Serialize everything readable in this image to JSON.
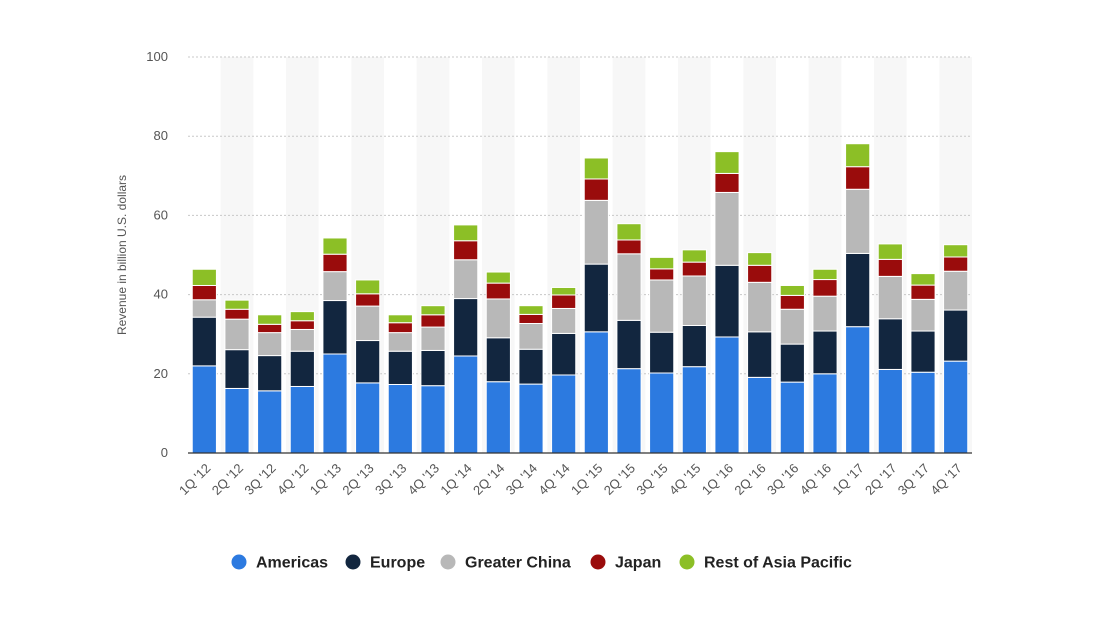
{
  "chart_data": {
    "type": "bar",
    "stacked": true,
    "categories": [
      "1Q '12",
      "2Q '12",
      "3Q '12",
      "4Q '12",
      "1Q '13",
      "2Q '13",
      "3Q '13",
      "4Q '13",
      "1Q '14",
      "2Q '14",
      "3Q '14",
      "4Q '14",
      "1Q '15",
      "2Q '15",
      "3Q '15",
      "4Q '15",
      "1Q '16",
      "2Q '16",
      "3Q '16",
      "4Q '16",
      "1Q '17",
      "2Q '17",
      "3Q '17",
      "4Q '17"
    ],
    "ylabel": "Revenue in billion U.S. dollars",
    "xlabel": "",
    "ylim": [
      0,
      100
    ],
    "yticks": [
      0,
      20,
      40,
      60,
      80,
      100
    ],
    "grid": true,
    "legend_position": "bottom",
    "series": [
      {
        "name": "Americas",
        "color": "#2c7ae0",
        "values": [
          22.0,
          16.3,
          15.7,
          16.8,
          25.0,
          17.7,
          17.3,
          17.0,
          24.5,
          18.0,
          17.4,
          19.7,
          30.6,
          21.3,
          20.2,
          21.8,
          29.3,
          19.1,
          17.9,
          20.0,
          31.9,
          21.1,
          20.4,
          23.2
        ]
      },
      {
        "name": "Europe",
        "color": "#12263f",
        "values": [
          12.3,
          9.8,
          8.9,
          8.9,
          13.5,
          10.7,
          8.4,
          8.9,
          14.5,
          11.1,
          8.8,
          10.5,
          17.1,
          12.2,
          10.3,
          10.4,
          18.1,
          11.5,
          9.6,
          10.8,
          18.5,
          12.8,
          10.4,
          12.9
        ]
      },
      {
        "name": "Greater China",
        "color": "#b8b8b8",
        "values": [
          4.4,
          7.7,
          5.8,
          5.5,
          7.3,
          8.7,
          4.7,
          5.9,
          9.8,
          9.8,
          6.5,
          6.3,
          16.1,
          16.8,
          13.2,
          12.5,
          18.4,
          12.5,
          8.8,
          8.8,
          16.2,
          10.7,
          8.0,
          9.8
        ]
      },
      {
        "name": "Japan",
        "color": "#9a0c0c",
        "values": [
          3.6,
          2.5,
          2.1,
          2.2,
          4.4,
          3.1,
          2.5,
          3.1,
          4.8,
          4.0,
          2.3,
          3.4,
          5.4,
          3.5,
          2.8,
          3.5,
          4.8,
          4.3,
          3.5,
          4.2,
          5.7,
          4.3,
          3.6,
          3.6
        ]
      },
      {
        "name": "Rest of Asia Pacific",
        "color": "#8cbf26",
        "values": [
          4.1,
          2.3,
          2.4,
          2.3,
          4.1,
          3.5,
          2.0,
          2.3,
          4.0,
          2.8,
          2.2,
          1.9,
          5.3,
          4.1,
          2.9,
          3.1,
          5.5,
          3.2,
          2.5,
          2.6,
          5.8,
          3.9,
          2.9,
          3.1
        ]
      }
    ]
  }
}
